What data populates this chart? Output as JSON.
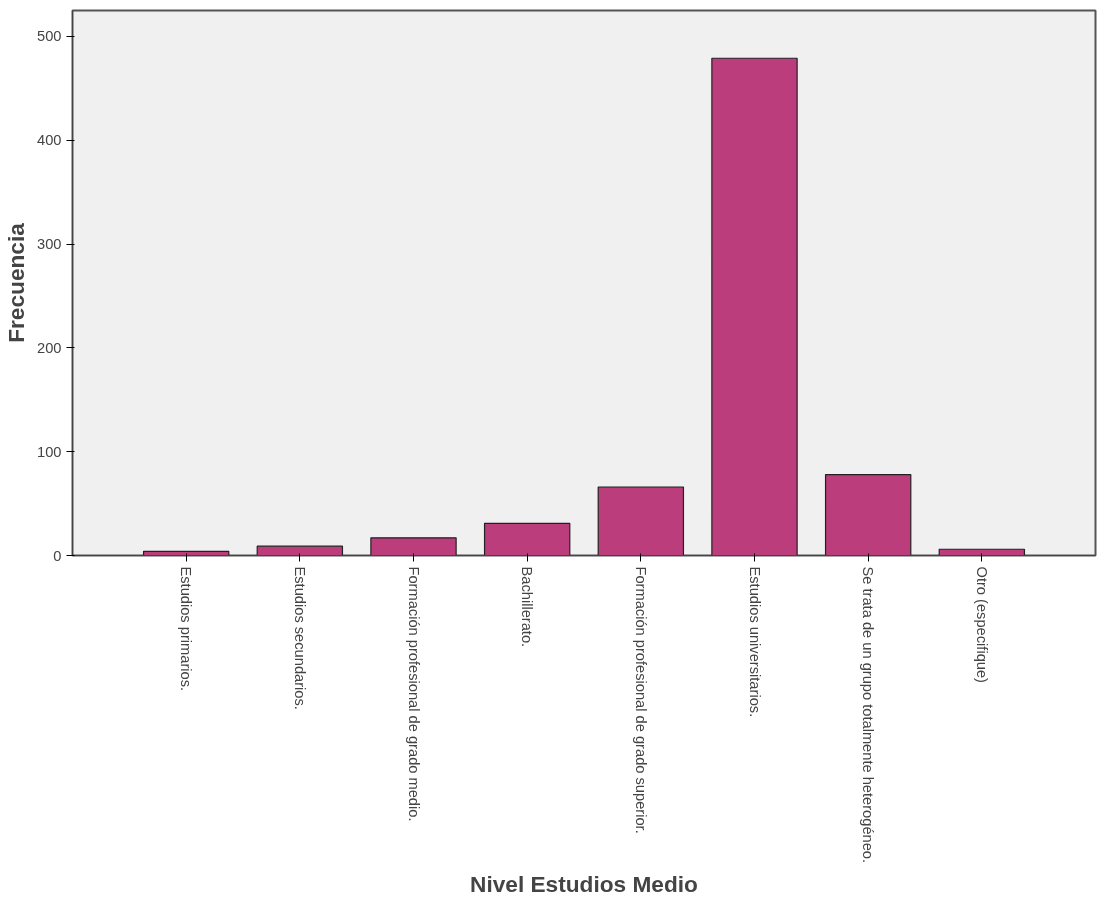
{
  "chart_data": {
    "type": "bar",
    "xlabel": "Nivel Estudios Medio",
    "ylabel": "Frecuencia",
    "categories": [
      "Estudios primarios.",
      "Estudios secundarios.",
      "Formación profesional de grado medio.",
      "Bachillerato.",
      "Formación profesional de grado superior.",
      "Estudios universitarios.",
      "Se trata de un grupo totalmente heterogéneo.",
      "Otro (especifique)"
    ],
    "values": [
      4,
      9,
      17,
      31,
      66,
      479,
      78,
      6
    ],
    "color": "#bb3d7b",
    "ylim": [
      0,
      525
    ],
    "yticks": [
      0,
      100,
      200,
      300,
      400,
      500
    ],
    "grid": false
  }
}
